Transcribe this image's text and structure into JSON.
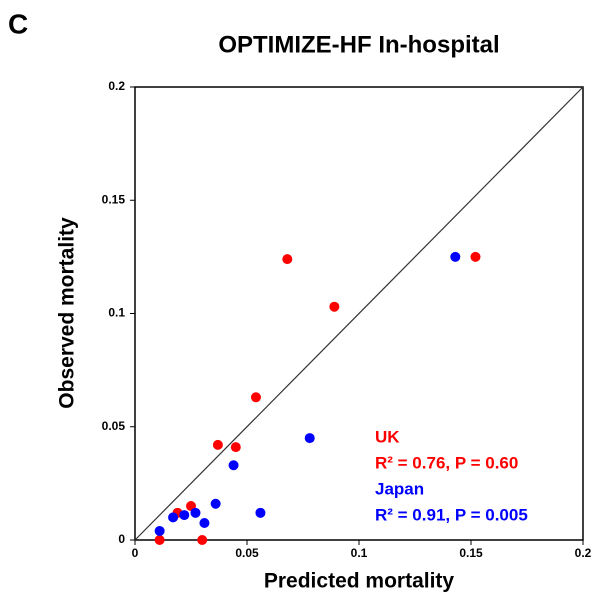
{
  "panel_label": "C",
  "chart_data": {
    "type": "scatter",
    "title": "OPTIMIZE-HF In-hospital",
    "xlabel": "Predicted mortality",
    "ylabel": "Observed mortality",
    "xlim": [
      0,
      0.2
    ],
    "ylim": [
      0,
      0.2
    ],
    "xticks": [
      0,
      0.05,
      0.1,
      0.15,
      0.2
    ],
    "yticks": [
      0,
      0.05,
      0.1,
      0.15,
      0.2
    ],
    "identity_line": true,
    "series": [
      {
        "name": "UK",
        "color": "#ff0000",
        "stats": "R² = 0.76, P = 0.60",
        "x": [
          0.011,
          0.019,
          0.025,
          0.03,
          0.037,
          0.045,
          0.054,
          0.068,
          0.089,
          0.152
        ],
        "values": [
          0,
          0.012,
          0.015,
          0,
          0.042,
          0.041,
          0.063,
          0.124,
          0.103,
          0.125
        ]
      },
      {
        "name": "Japan",
        "color": "#0000ff",
        "stats": "R² = 0.91, P = 0.005",
        "x": [
          0.011,
          0.017,
          0.022,
          0.027,
          0.031,
          0.036,
          0.044,
          0.056,
          0.078,
          0.143
        ],
        "values": [
          0.004,
          0.01,
          0.011,
          0.012,
          0.0075,
          0.016,
          0.033,
          0.012,
          0.045,
          0.125
        ]
      }
    ]
  }
}
